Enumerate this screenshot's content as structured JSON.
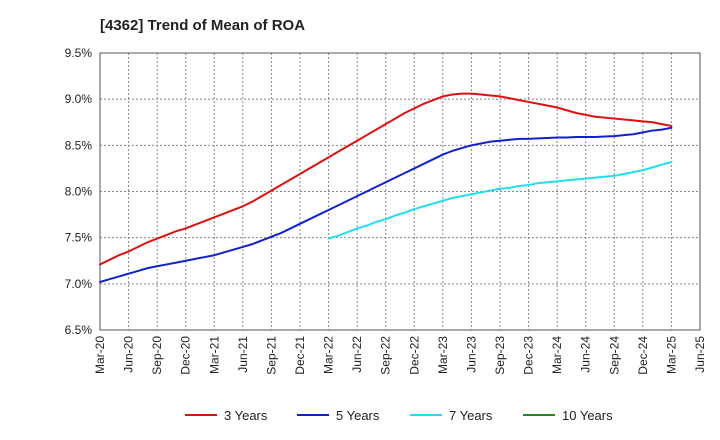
{
  "chart_data": {
    "type": "line",
    "title": "[4362]  Trend of Mean of ROA",
    "xlabel": "",
    "ylabel": "",
    "x_ticks": [
      "Mar-20",
      "Jun-20",
      "Sep-20",
      "Dec-20",
      "Mar-21",
      "Jun-21",
      "Sep-21",
      "Dec-21",
      "Mar-22",
      "Jun-22",
      "Sep-22",
      "Dec-22",
      "Mar-23",
      "Jun-23",
      "Sep-23",
      "Dec-23",
      "Mar-24",
      "Jun-24",
      "Sep-24",
      "Dec-24",
      "Mar-25",
      "Jun-25"
    ],
    "y_ticks": [
      "6.5%",
      "7.0%",
      "7.5%",
      "8.0%",
      "8.5%",
      "9.0%",
      "9.5%"
    ],
    "ylim": [
      6.5,
      9.5
    ],
    "y_unit": "%",
    "grid": true,
    "legend_position": "bottom",
    "series": [
      {
        "name": "3 Years",
        "color": "#dd1111",
        "x": [
          "Mar-20",
          "Apr-20",
          "May-20",
          "Jun-20",
          "Jul-20",
          "Aug-20",
          "Sep-20",
          "Oct-20",
          "Nov-20",
          "Dec-20",
          "Jan-21",
          "Feb-21",
          "Mar-21",
          "Apr-21",
          "May-21",
          "Jun-21",
          "Jul-21",
          "Aug-21",
          "Sep-21",
          "Oct-21",
          "Nov-21",
          "Dec-21",
          "Jan-22",
          "Feb-22",
          "Mar-22",
          "Apr-22",
          "May-22",
          "Jun-22",
          "Jul-22",
          "Aug-22",
          "Sep-22",
          "Oct-22",
          "Nov-22",
          "Dec-22",
          "Jan-23",
          "Feb-23",
          "Mar-23",
          "Apr-23",
          "May-23",
          "Jun-23",
          "Jul-23",
          "Aug-23",
          "Sep-23",
          "Oct-23",
          "Nov-23",
          "Dec-23",
          "Jan-24",
          "Feb-24",
          "Mar-24",
          "Apr-24",
          "May-24",
          "Jun-24",
          "Jul-24",
          "Aug-24",
          "Sep-24",
          "Oct-24",
          "Nov-24",
          "Dec-24",
          "Jan-25",
          "Feb-25",
          "Mar-25"
        ],
        "values": [
          7.21,
          7.26,
          7.31,
          7.35,
          7.4,
          7.45,
          7.49,
          7.53,
          7.57,
          7.6,
          7.64,
          7.68,
          7.72,
          7.76,
          7.8,
          7.84,
          7.89,
          7.95,
          8.01,
          8.07,
          8.13,
          8.19,
          8.25,
          8.31,
          8.37,
          8.43,
          8.49,
          8.55,
          8.61,
          8.67,
          8.73,
          8.79,
          8.85,
          8.9,
          8.95,
          8.99,
          9.03,
          9.05,
          9.06,
          9.06,
          9.05,
          9.04,
          9.03,
          9.01,
          8.99,
          8.97,
          8.95,
          8.93,
          8.91,
          8.88,
          8.85,
          8.83,
          8.81,
          8.8,
          8.79,
          8.78,
          8.77,
          8.76,
          8.75,
          8.73,
          8.71
        ]
      },
      {
        "name": "5 Years",
        "color": "#1122cc",
        "x": [
          "Mar-20",
          "Apr-20",
          "May-20",
          "Jun-20",
          "Jul-20",
          "Aug-20",
          "Sep-20",
          "Oct-20",
          "Nov-20",
          "Dec-20",
          "Jan-21",
          "Feb-21",
          "Mar-21",
          "Apr-21",
          "May-21",
          "Jun-21",
          "Jul-21",
          "Aug-21",
          "Sep-21",
          "Oct-21",
          "Nov-21",
          "Dec-21",
          "Jan-22",
          "Feb-22",
          "Mar-22",
          "Apr-22",
          "May-22",
          "Jun-22",
          "Jul-22",
          "Aug-22",
          "Sep-22",
          "Oct-22",
          "Nov-22",
          "Dec-22",
          "Jan-23",
          "Feb-23",
          "Mar-23",
          "Apr-23",
          "May-23",
          "Jun-23",
          "Jul-23",
          "Aug-23",
          "Sep-23",
          "Oct-23",
          "Nov-23",
          "Dec-23",
          "Jan-24",
          "Feb-24",
          "Mar-24",
          "Apr-24",
          "May-24",
          "Jun-24",
          "Jul-24",
          "Aug-24",
          "Sep-24",
          "Oct-24",
          "Nov-24",
          "Dec-24",
          "Jan-25",
          "Feb-25",
          "Mar-25"
        ],
        "values": [
          7.02,
          7.05,
          7.08,
          7.11,
          7.14,
          7.17,
          7.19,
          7.21,
          7.23,
          7.25,
          7.27,
          7.29,
          7.31,
          7.34,
          7.37,
          7.4,
          7.43,
          7.47,
          7.51,
          7.55,
          7.6,
          7.65,
          7.7,
          7.75,
          7.8,
          7.85,
          7.9,
          7.95,
          8.0,
          8.05,
          8.1,
          8.15,
          8.2,
          8.25,
          8.3,
          8.35,
          8.4,
          8.44,
          8.47,
          8.5,
          8.52,
          8.54,
          8.55,
          8.56,
          8.57,
          8.57,
          8.575,
          8.58,
          8.585,
          8.585,
          8.59,
          8.59,
          8.59,
          8.595,
          8.6,
          8.61,
          8.62,
          8.64,
          8.66,
          8.67,
          8.69
        ]
      },
      {
        "name": "7 Years",
        "color": "#22ddee",
        "x": [
          "Mar-22",
          "Apr-22",
          "May-22",
          "Jun-22",
          "Jul-22",
          "Aug-22",
          "Sep-22",
          "Oct-22",
          "Nov-22",
          "Dec-22",
          "Jan-23",
          "Feb-23",
          "Mar-23",
          "Apr-23",
          "May-23",
          "Jun-23",
          "Jul-23",
          "Aug-23",
          "Sep-23",
          "Oct-23",
          "Nov-23",
          "Dec-23",
          "Jan-24",
          "Feb-24",
          "Mar-24",
          "Apr-24",
          "May-24",
          "Jun-24",
          "Jul-24",
          "Aug-24",
          "Sep-24",
          "Oct-24",
          "Nov-24",
          "Dec-24",
          "Jan-25",
          "Feb-25",
          "Mar-25"
        ],
        "values": [
          7.49,
          7.52,
          7.56,
          7.6,
          7.63,
          7.67,
          7.7,
          7.74,
          7.77,
          7.81,
          7.84,
          7.87,
          7.9,
          7.93,
          7.95,
          7.97,
          7.99,
          8.01,
          8.03,
          8.04,
          8.06,
          8.07,
          8.09,
          8.1,
          8.11,
          8.12,
          8.13,
          8.14,
          8.15,
          8.16,
          8.17,
          8.19,
          8.21,
          8.23,
          8.26,
          8.29,
          8.32
        ]
      },
      {
        "name": "10 Years",
        "color": "#228822",
        "x": [],
        "values": []
      }
    ]
  }
}
